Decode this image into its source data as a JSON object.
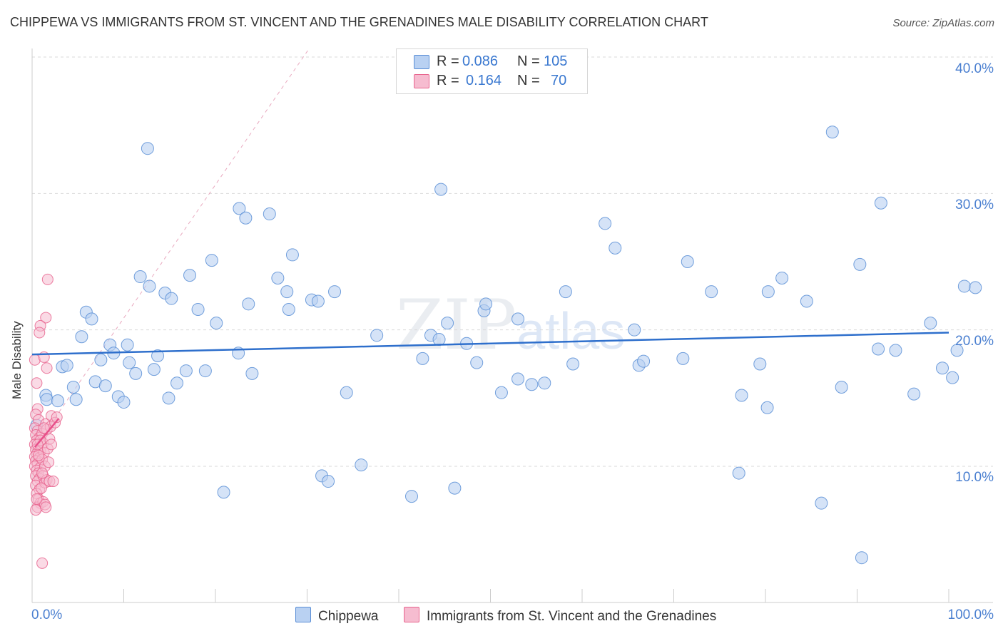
{
  "title": "CHIPPEWA VS IMMIGRANTS FROM ST. VINCENT AND THE GRENADINES MALE DISABILITY CORRELATION CHART",
  "source": "Source: ZipAtlas.com",
  "watermark": {
    "main": "ZIP",
    "sub": "atlas"
  },
  "colors": {
    "blue": "#5b8fd6",
    "blue_fill": "#b9d1f2",
    "pink": "#e8648e",
    "pink_fill": "#f6bcd0",
    "blue_line": "#2e6fcc",
    "pink_line": "#e8508a",
    "grid": "#d9d9d9"
  },
  "stats": [
    {
      "r_label": "R =",
      "r": "0.086",
      "n_label": "N =",
      "n": "105"
    },
    {
      "r_label": "R =",
      "r": "0.164",
      "n_label": "N =",
      "n": "70"
    }
  ],
  "legend": [
    "Chippewa",
    "Immigrants from St. Vincent and the Grenadines"
  ],
  "chart_data": {
    "type": "scatter",
    "title": "CHIPPEWA VS IMMIGRANTS FROM ST. VINCENT AND THE GRENADINES MALE DISABILITY CORRELATION CHART",
    "xlabel": "",
    "ylabel": "Male Disability",
    "xlim": [
      0,
      100
    ],
    "ylim": [
      0,
      42
    ],
    "x_tick_labels": [
      "0.0%",
      "100.0%"
    ],
    "y_ticks": [
      10,
      20,
      30,
      40
    ],
    "y_tick_labels": [
      "10.0%",
      "20.0%",
      "30.0%",
      "40.0%"
    ],
    "grid": true,
    "series": [
      {
        "name": "Chippewa",
        "r": 0.086,
        "n": 105,
        "trend": {
          "x": [
            0,
            100
          ],
          "y": [
            18.2,
            19.8
          ]
        },
        "points": [
          [
            0.5,
            13
          ],
          [
            1.5,
            15.2
          ],
          [
            1.6,
            14.9
          ],
          [
            2.8,
            14.8
          ],
          [
            3.3,
            17.3
          ],
          [
            3.8,
            17.4
          ],
          [
            4.5,
            15.8
          ],
          [
            4.8,
            14.9
          ],
          [
            5.4,
            19.5
          ],
          [
            5.9,
            21.3
          ],
          [
            6.5,
            20.8
          ],
          [
            6.9,
            16.2
          ],
          [
            7.5,
            17.8
          ],
          [
            8,
            15.9
          ],
          [
            8.5,
            18.9
          ],
          [
            8.9,
            18.3
          ],
          [
            9.4,
            15.1
          ],
          [
            10,
            14.7
          ],
          [
            10.4,
            18.9
          ],
          [
            10.6,
            17.6
          ],
          [
            11.3,
            16.8
          ],
          [
            11.8,
            23.9
          ],
          [
            12.6,
            33.3
          ],
          [
            12.8,
            23.2
          ],
          [
            13.3,
            17.1
          ],
          [
            13.7,
            18.1
          ],
          [
            14.5,
            22.7
          ],
          [
            14.9,
            15
          ],
          [
            15.2,
            22.3
          ],
          [
            15.8,
            16.1
          ],
          [
            16.8,
            17
          ],
          [
            17.2,
            24
          ],
          [
            18.1,
            21.5
          ],
          [
            18.9,
            17
          ],
          [
            19.6,
            25.1
          ],
          [
            20.1,
            20.5
          ],
          [
            20.9,
            8.1
          ],
          [
            22.5,
            18.3
          ],
          [
            22.6,
            28.9
          ],
          [
            23.3,
            28.2
          ],
          [
            23.6,
            21.9
          ],
          [
            24,
            16.8
          ],
          [
            25.9,
            28.5
          ],
          [
            26.8,
            23.8
          ],
          [
            27.8,
            22.8
          ],
          [
            28,
            21.5
          ],
          [
            28.4,
            25.5
          ],
          [
            30.5,
            22.2
          ],
          [
            31.2,
            22.1
          ],
          [
            31.6,
            9.3
          ],
          [
            32.3,
            8.9
          ],
          [
            33,
            22.8
          ],
          [
            34.3,
            15.4
          ],
          [
            35.9,
            10.1
          ],
          [
            37.6,
            19.6
          ],
          [
            41.4,
            7.8
          ],
          [
            42.6,
            17.9
          ],
          [
            43.5,
            19.6
          ],
          [
            44.4,
            19.3
          ],
          [
            44.6,
            30.3
          ],
          [
            45.3,
            20.5
          ],
          [
            46.1,
            8.4
          ],
          [
            47.4,
            19
          ],
          [
            48.5,
            17.6
          ],
          [
            49.3,
            21.4
          ],
          [
            49.5,
            21.9
          ],
          [
            51.2,
            15.4
          ],
          [
            53,
            20.8
          ],
          [
            53,
            16.4
          ],
          [
            54.5,
            16
          ],
          [
            55.9,
            16.1
          ],
          [
            58.2,
            22.8
          ],
          [
            59,
            17.5
          ],
          [
            62.5,
            27.8
          ],
          [
            63.6,
            26
          ],
          [
            65.7,
            20
          ],
          [
            66.2,
            17.4
          ],
          [
            66.7,
            17.7
          ],
          [
            71,
            17.9
          ],
          [
            71.5,
            25
          ],
          [
            74.1,
            22.8
          ],
          [
            77.1,
            9.5
          ],
          [
            77.4,
            15.2
          ],
          [
            79.4,
            17.5
          ],
          [
            80.2,
            14.3
          ],
          [
            80.3,
            22.8
          ],
          [
            81.8,
            23.8
          ],
          [
            84.5,
            22.1
          ],
          [
            86.1,
            7.3
          ],
          [
            90.5,
            3.3
          ],
          [
            87.3,
            34.5
          ],
          [
            88.3,
            15.8
          ],
          [
            90.3,
            24.8
          ],
          [
            92.3,
            18.6
          ],
          [
            92.6,
            29.3
          ],
          [
            94.2,
            18.5
          ],
          [
            96.2,
            15.3
          ],
          [
            98,
            20.5
          ],
          [
            99.3,
            17.2
          ],
          [
            100.4,
            16.5
          ],
          [
            100.9,
            18.5
          ],
          [
            101.7,
            23.2
          ],
          [
            102.9,
            23.1
          ]
        ]
      },
      {
        "name": "Immigrants from St. Vincent and the Grenadines",
        "r": 0.164,
        "n": 70,
        "trend": {
          "x": [
            0.3,
            2.9
          ],
          "y": [
            11.4,
            13.5
          ]
        },
        "points": [
          [
            0.3,
            17.8
          ],
          [
            0.5,
            16.1
          ],
          [
            0.6,
            14.2
          ],
          [
            0.4,
            13.8
          ],
          [
            0.7,
            13.4
          ],
          [
            0.3,
            12.8
          ],
          [
            0.6,
            12.6
          ],
          [
            0.4,
            12.3
          ],
          [
            0.8,
            12.1
          ],
          [
            0.5,
            11.9
          ],
          [
            0.3,
            11.6
          ],
          [
            0.7,
            11.4
          ],
          [
            0.4,
            11.2
          ],
          [
            0.9,
            11.1
          ],
          [
            0.5,
            10.9
          ],
          [
            0.3,
            10.7
          ],
          [
            0.8,
            10.6
          ],
          [
            0.4,
            10.4
          ],
          [
            0.6,
            10.2
          ],
          [
            0.3,
            10
          ],
          [
            0.9,
            9.9
          ],
          [
            0.5,
            9.7
          ],
          [
            0.7,
            9.5
          ],
          [
            0.4,
            9.3
          ],
          [
            0.8,
            9.1
          ],
          [
            0.6,
            8.9
          ],
          [
            0.4,
            8.6
          ],
          [
            0.8,
            8.3
          ],
          [
            0.5,
            8
          ],
          [
            0.7,
            7.6
          ],
          [
            0.9,
            7.3
          ],
          [
            0.6,
            7
          ],
          [
            0.4,
            6.8
          ],
          [
            1.1,
            12.4
          ],
          [
            1.2,
            11.7
          ],
          [
            1.3,
            11
          ],
          [
            1.1,
            10.5
          ],
          [
            1.4,
            10
          ],
          [
            1.2,
            9.3
          ],
          [
            1.4,
            8.8
          ],
          [
            1.2,
            7.4
          ],
          [
            1.5,
            13.1
          ],
          [
            1.6,
            12.7
          ],
          [
            1.7,
            11.3
          ],
          [
            1.8,
            10.3
          ],
          [
            1.6,
            9
          ],
          [
            1.9,
            8.9
          ],
          [
            1.4,
            7.2
          ],
          [
            2,
            12.9
          ],
          [
            2.1,
            13.7
          ],
          [
            2.3,
            8.9
          ],
          [
            2.5,
            13.2
          ],
          [
            2.7,
            13.6
          ],
          [
            1.5,
            20.9
          ],
          [
            0.9,
            20.3
          ],
          [
            0.8,
            19.8
          ],
          [
            1.6,
            17.2
          ],
          [
            1.7,
            23.7
          ],
          [
            1.1,
            2.9
          ],
          [
            1.3,
            18
          ],
          [
            1.9,
            12
          ],
          [
            0.5,
            7.6
          ],
          [
            2.1,
            11.6
          ],
          [
            1.3,
            12.8
          ],
          [
            0.9,
            11.9
          ],
          [
            0.6,
            11.6
          ],
          [
            1.1,
            9.5
          ],
          [
            0.7,
            10.8
          ],
          [
            1.0,
            8.4
          ],
          [
            1.5,
            7.0
          ]
        ]
      }
    ]
  }
}
